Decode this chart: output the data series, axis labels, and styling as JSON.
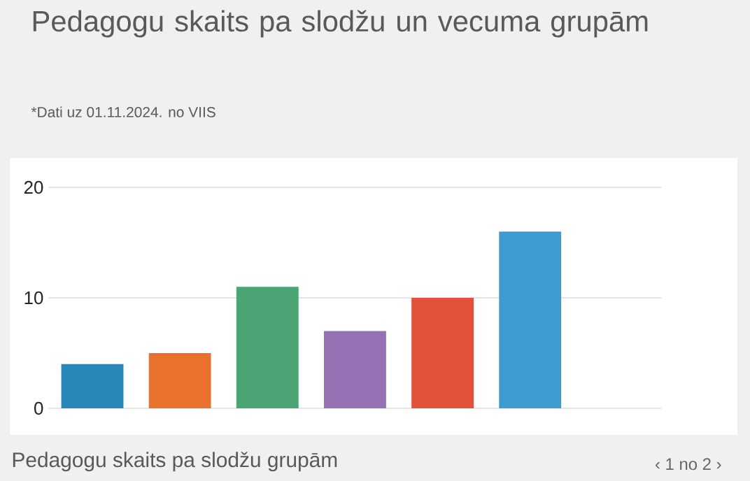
{
  "chart_data": {
    "type": "bar",
    "title": "Pedagogu skaits pa slodžu un vecuma grupām",
    "subtitle": "*Dati uz 01.11.2024. no VIIS",
    "categories": [
      null,
      null,
      null,
      null,
      null,
      null,
      null
    ],
    "values": [
      4,
      5,
      11,
      7,
      10,
      16,
      0
    ],
    "colors": [
      "#2a88b8",
      "#e8722c",
      "#4aa473",
      "#9570b2",
      "#e2513a",
      "#3e9bcf",
      "#e8922c"
    ],
    "ylim": [
      0,
      20
    ],
    "yticks": [
      0,
      10,
      20
    ],
    "grid": "y",
    "annotations": [
      "Pedagogu skaits pa slodžu grupām",
      "‹   1 no 2   ›"
    ]
  }
}
